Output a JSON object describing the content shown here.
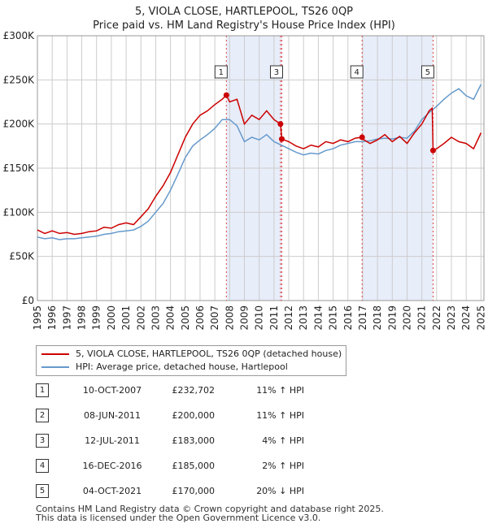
{
  "chart_data": {
    "type": "line",
    "title": "5, VIOLA CLOSE, HARTLEPOOL, TS26 0QP",
    "subtitle": "Price paid vs. HM Land Registry's House Price Index (HPI)",
    "xlim": [
      1995,
      2025.2
    ],
    "ylim": [
      0,
      300000
    ],
    "x_ticks": [
      "1995",
      "1996",
      "1997",
      "1998",
      "1999",
      "2000",
      "2001",
      "2002",
      "2003",
      "2004",
      "2005",
      "2006",
      "2007",
      "2008",
      "2009",
      "2010",
      "2011",
      "2012",
      "2013",
      "2014",
      "2015",
      "2016",
      "2017",
      "2018",
      "2019",
      "2020",
      "2021",
      "2022",
      "2023",
      "2024",
      "2025"
    ],
    "y_ticks": [
      {
        "value": 0,
        "label": "£0"
      },
      {
        "value": 50000,
        "label": "£50K"
      },
      {
        "value": 100000,
        "label": "£100K"
      },
      {
        "value": 150000,
        "label": "£150K"
      },
      {
        "value": 200000,
        "label": "£200K"
      },
      {
        "value": 250000,
        "label": "£250K"
      },
      {
        "value": 300000,
        "label": "£300K"
      }
    ],
    "grid": true,
    "series": [
      {
        "name": "5, VIOLA CLOSE, HARTLEPOOL, TS26 0QP (detached house)",
        "color": "#cc0000",
        "points": [
          [
            1995,
            80000
          ],
          [
            1995.5,
            76000
          ],
          [
            1996,
            79000
          ],
          [
            1996.5,
            76000
          ],
          [
            1997,
            77000
          ],
          [
            1997.5,
            75000
          ],
          [
            1998,
            76000
          ],
          [
            1998.5,
            78000
          ],
          [
            1999,
            79000
          ],
          [
            1999.5,
            83000
          ],
          [
            2000,
            82000
          ],
          [
            2000.5,
            86000
          ],
          [
            2001,
            88000
          ],
          [
            2001.5,
            86000
          ],
          [
            2002,
            95000
          ],
          [
            2002.5,
            104000
          ],
          [
            2003,
            118000
          ],
          [
            2003.5,
            130000
          ],
          [
            2004,
            145000
          ],
          [
            2004.5,
            165000
          ],
          [
            2005,
            185000
          ],
          [
            2005.5,
            200000
          ],
          [
            2006,
            210000
          ],
          [
            2006.5,
            215000
          ],
          [
            2007,
            222000
          ],
          [
            2007.5,
            228000
          ],
          [
            2007.78,
            232702
          ],
          [
            2008,
            225000
          ],
          [
            2008.5,
            228000
          ],
          [
            2009,
            200000
          ],
          [
            2009.5,
            210000
          ],
          [
            2010,
            205000
          ],
          [
            2010.5,
            215000
          ],
          [
            2011,
            205000
          ],
          [
            2011.44,
            200000
          ],
          [
            2011.53,
            183000
          ],
          [
            2012,
            180000
          ],
          [
            2012.5,
            175000
          ],
          [
            2013,
            172000
          ],
          [
            2013.5,
            176000
          ],
          [
            2014,
            174000
          ],
          [
            2014.5,
            180000
          ],
          [
            2015,
            178000
          ],
          [
            2015.5,
            182000
          ],
          [
            2016,
            180000
          ],
          [
            2016.5,
            184000
          ],
          [
            2016.96,
            185000
          ],
          [
            2017,
            183000
          ],
          [
            2017.5,
            178000
          ],
          [
            2018,
            182000
          ],
          [
            2018.5,
            188000
          ],
          [
            2019,
            180000
          ],
          [
            2019.5,
            186000
          ],
          [
            2020,
            178000
          ],
          [
            2020.5,
            190000
          ],
          [
            2021,
            200000
          ],
          [
            2021.5,
            215000
          ],
          [
            2021.7,
            218000
          ],
          [
            2021.76,
            170000
          ],
          [
            2022,
            172000
          ],
          [
            2022.5,
            178000
          ],
          [
            2023,
            185000
          ],
          [
            2023.5,
            180000
          ],
          [
            2024,
            178000
          ],
          [
            2024.5,
            172000
          ],
          [
            2025,
            190000
          ]
        ]
      },
      {
        "name": "HPI: Average price, detached house, Hartlepool",
        "color": "#6699cc",
        "points": [
          [
            1995,
            72000
          ],
          [
            1995.5,
            70000
          ],
          [
            1996,
            71000
          ],
          [
            1996.5,
            69000
          ],
          [
            1997,
            70000
          ],
          [
            1997.5,
            70000
          ],
          [
            1998,
            71000
          ],
          [
            1998.5,
            72000
          ],
          [
            1999,
            73000
          ],
          [
            1999.5,
            75000
          ],
          [
            2000,
            76000
          ],
          [
            2000.5,
            78000
          ],
          [
            2001,
            79000
          ],
          [
            2001.5,
            80000
          ],
          [
            2002,
            84000
          ],
          [
            2002.5,
            90000
          ],
          [
            2003,
            100000
          ],
          [
            2003.5,
            110000
          ],
          [
            2004,
            125000
          ],
          [
            2004.5,
            143000
          ],
          [
            2005,
            162000
          ],
          [
            2005.5,
            175000
          ],
          [
            2006,
            182000
          ],
          [
            2006.5,
            188000
          ],
          [
            2007,
            195000
          ],
          [
            2007.5,
            205000
          ],
          [
            2008,
            205000
          ],
          [
            2008.5,
            198000
          ],
          [
            2009,
            180000
          ],
          [
            2009.5,
            185000
          ],
          [
            2010,
            182000
          ],
          [
            2010.5,
            188000
          ],
          [
            2011,
            180000
          ],
          [
            2011.5,
            176000
          ],
          [
            2012,
            172000
          ],
          [
            2012.5,
            168000
          ],
          [
            2013,
            165000
          ],
          [
            2013.5,
            167000
          ],
          [
            2014,
            166000
          ],
          [
            2014.5,
            170000
          ],
          [
            2015,
            172000
          ],
          [
            2015.5,
            176000
          ],
          [
            2016,
            178000
          ],
          [
            2016.5,
            180000
          ],
          [
            2017,
            180000
          ],
          [
            2017.5,
            181000
          ],
          [
            2018,
            183000
          ],
          [
            2018.5,
            184000
          ],
          [
            2019,
            183000
          ],
          [
            2019.5,
            185000
          ],
          [
            2020,
            184000
          ],
          [
            2020.5,
            192000
          ],
          [
            2021,
            205000
          ],
          [
            2021.5,
            213000
          ],
          [
            2022,
            220000
          ],
          [
            2022.5,
            228000
          ],
          [
            2023,
            235000
          ],
          [
            2023.5,
            240000
          ],
          [
            2024,
            232000
          ],
          [
            2024.5,
            228000
          ],
          [
            2025,
            245000
          ]
        ]
      }
    ],
    "sales": [
      {
        "id": "1",
        "x": 2007.78,
        "price": 232702,
        "date": "10-OCT-2007",
        "price_label": "£232,702",
        "hpi": "11% ↑ HPI"
      },
      {
        "id": "2",
        "x": 2011.44,
        "price": 200000,
        "date": "08-JUN-2011",
        "price_label": "£200,000",
        "hpi": "11% ↑ HPI"
      },
      {
        "id": "3",
        "x": 2011.53,
        "price": 183000,
        "date": "12-JUL-2011",
        "price_label": "£183,000",
        "hpi": "4% ↑ HPI"
      },
      {
        "id": "4",
        "x": 2016.96,
        "price": 185000,
        "date": "16-DEC-2016",
        "price_label": "£185,000",
        "hpi": "2% ↑ HPI"
      },
      {
        "id": "5",
        "x": 2021.76,
        "price": 170000,
        "date": "04-OCT-2021",
        "price_label": "£170,000",
        "hpi": "20% ↓ HPI"
      }
    ],
    "shaded_ranges": [
      [
        2007.78,
        2011.53
      ],
      [
        2016.96,
        2021.76
      ]
    ]
  },
  "footer": {
    "line1": "Contains HM Land Registry data © Crown copyright and database right 2025.",
    "line2": "This data is licensed under the Open Government Licence v3.0."
  }
}
